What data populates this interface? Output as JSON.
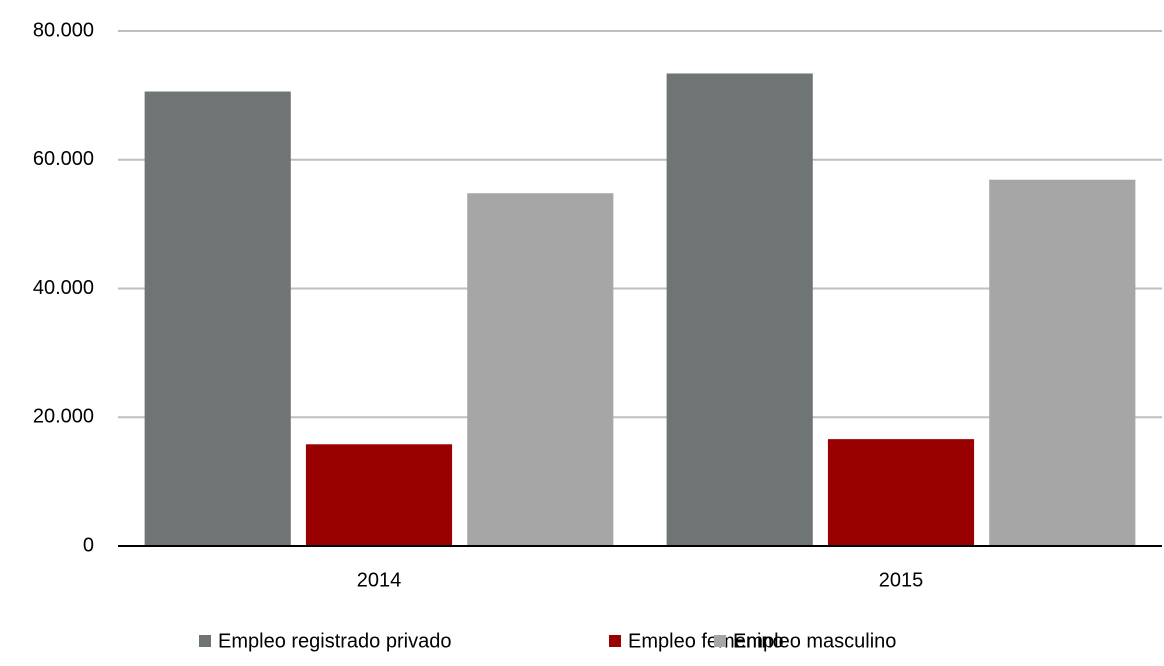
{
  "chart_data": {
    "type": "bar",
    "categories": [
      "2014",
      "2015"
    ],
    "series": [
      {
        "name": "Empleo registrado privado",
        "color": "#6f7574",
        "values": [
          70600,
          73400
        ]
      },
      {
        "name": "Empleo femenino",
        "color": "#990000",
        "values": [
          15800,
          16600
        ]
      },
      {
        "name": "Empleo masculino",
        "color": "#a6a6a6",
        "values": [
          54800,
          56900
        ]
      }
    ],
    "ylim": [
      0,
      80000
    ],
    "yticks": [
      0,
      {
        "value": 20000,
        "label": "20.000"
      },
      {
        "value": 40000,
        "label": "40.000"
      },
      {
        "value": 60000,
        "label": "60.000"
      },
      {
        "value": 80000,
        "label": "80.000"
      }
    ],
    "grid": true,
    "legend": "bottom"
  }
}
